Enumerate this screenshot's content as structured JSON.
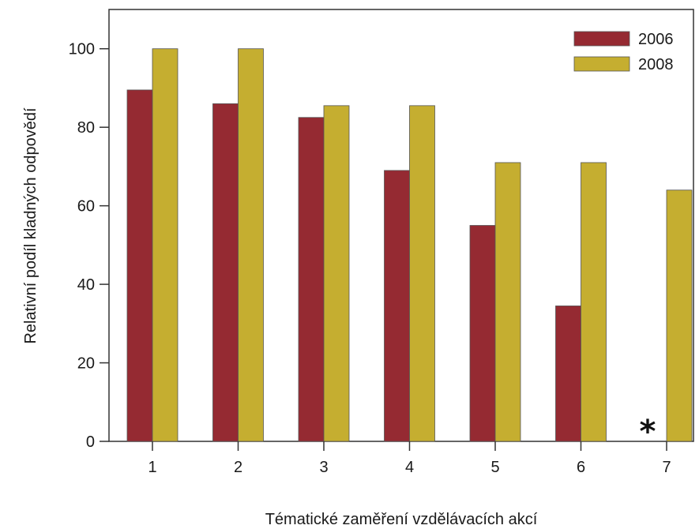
{
  "chart_data": {
    "type": "bar",
    "title": "",
    "xlabel": "Tématické zaměření vzdělávacích akcí",
    "ylabel": "Relativní podíl kladných odpovědí",
    "categories": [
      "1",
      "2",
      "3",
      "4",
      "5",
      "6",
      "7"
    ],
    "series": [
      {
        "name": "2006",
        "color": "#952a32",
        "values": [
          89.5,
          86,
          82.5,
          69,
          55,
          34.5,
          null
        ]
      },
      {
        "name": "2008",
        "color": "#c5ae30",
        "values": [
          100,
          100,
          85.5,
          85.5,
          71,
          71,
          64
        ]
      }
    ],
    "ylim": [
      0,
      110
    ],
    "yticks": [
      0,
      20,
      40,
      60,
      80,
      100
    ],
    "grid": false,
    "legend": "top-right",
    "annotations": [
      {
        "text": "*",
        "category": "7",
        "series": "2006"
      }
    ]
  }
}
